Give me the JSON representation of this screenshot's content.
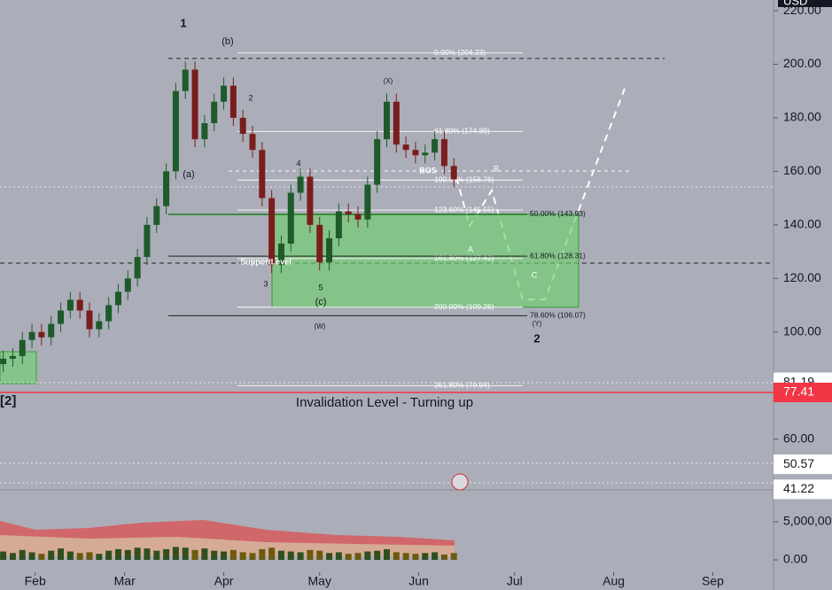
{
  "chart_data": {
    "type": "candlestick",
    "currency": "USD",
    "xlim": [
      20,
      262
    ],
    "xticks": [
      {
        "value": 31,
        "label": "Feb"
      },
      {
        "value": 59,
        "label": "Mar"
      },
      {
        "value": 90,
        "label": "Apr"
      },
      {
        "value": 120,
        "label": "May"
      },
      {
        "value": 151,
        "label": "Jun"
      },
      {
        "value": 181,
        "label": "Jul"
      },
      {
        "value": 212,
        "label": "Aug"
      },
      {
        "value": 243,
        "label": "Sep"
      }
    ],
    "ylim": [
      41,
      224
    ],
    "yticks": [
      {
        "value": 60,
        "label": "60.00"
      },
      {
        "value": 100,
        "label": "100.00"
      },
      {
        "value": 120,
        "label": "120.00"
      },
      {
        "value": 140,
        "label": "140.00"
      },
      {
        "value": 160,
        "label": "160.00"
      },
      {
        "value": 180,
        "label": "180.00"
      },
      {
        "value": 200,
        "label": "200.00"
      },
      {
        "value": 220,
        "label": "220.00"
      }
    ],
    "up_color": "#1e5a2a",
    "down_color": "#7a1d1d",
    "x": [
      21,
      24,
      27,
      30,
      33,
      36,
      39,
      42,
      45,
      48,
      51,
      54,
      57,
      60,
      63,
      66,
      69,
      72,
      75,
      78,
      81,
      84,
      87,
      90,
      93,
      96,
      99,
      102,
      105,
      108,
      111,
      114,
      117,
      120,
      123,
      126,
      129,
      132,
      135,
      138,
      141,
      144,
      147,
      150,
      153,
      156,
      159,
      162
    ],
    "open": [
      88,
      90,
      91,
      97,
      100,
      98,
      103,
      108,
      112,
      108,
      101,
      104,
      110,
      115,
      120,
      128,
      140,
      147,
      160,
      190,
      198,
      172,
      178,
      186,
      192,
      180,
      174,
      168,
      150,
      125,
      133,
      152,
      158,
      140,
      126,
      135,
      145,
      144,
      142,
      155,
      172,
      186,
      170,
      168,
      166,
      167,
      172,
      162
    ],
    "high": [
      93,
      94,
      100,
      103,
      103,
      106,
      111,
      115,
      115,
      111,
      107,
      113,
      118,
      123,
      131,
      143,
      150,
      163,
      193,
      201,
      201,
      181,
      189,
      195,
      195,
      183,
      177,
      171,
      153,
      136,
      155,
      161,
      161,
      143,
      138,
      148,
      148,
      147,
      158,
      175,
      189,
      189,
      173,
      171,
      170,
      175,
      175,
      165
    ],
    "low": [
      85,
      87,
      88,
      94,
      95,
      95,
      100,
      105,
      105,
      98,
      98,
      101,
      107,
      112,
      117,
      125,
      137,
      144,
      157,
      187,
      169,
      169,
      175,
      183,
      177,
      171,
      165,
      147,
      122,
      122,
      130,
      149,
      137,
      123,
      123,
      132,
      141,
      139,
      139,
      152,
      169,
      167,
      165,
      163,
      163,
      164,
      159,
      154
    ],
    "close": [
      90,
      91,
      97,
      100,
      98,
      103,
      108,
      112,
      108,
      101,
      104,
      110,
      115,
      120,
      128,
      140,
      147,
      160,
      190,
      198,
      172,
      178,
      186,
      192,
      180,
      174,
      168,
      150,
      125,
      133,
      152,
      158,
      140,
      126,
      135,
      145,
      144,
      142,
      155,
      172,
      186,
      170,
      168,
      166,
      167,
      172,
      162,
      157
    ],
    "volume": [
      1100000,
      900000,
      1300000,
      1000000,
      800000,
      1200000,
      1500000,
      1100000,
      900000,
      1000000,
      800000,
      1200000,
      1400000,
      1300000,
      1600000,
      1500000,
      1200000,
      1400000,
      1700000,
      1600000,
      1300000,
      1500000,
      1200000,
      1100000,
      1300000,
      1000000,
      900000,
      1400000,
      1600000,
      1200000,
      1100000,
      1000000,
      1300000,
      1200000,
      900000,
      1000000,
      800000,
      900000,
      1100000,
      1200000,
      1400000,
      1000000,
      900000,
      800000,
      900000,
      1000000,
      700000,
      900000
    ],
    "volume_ylim": [
      0,
      10000000
    ],
    "volume_yticks": [
      {
        "value": 0,
        "label": "0.00"
      },
      {
        "value": 5000000,
        "label": "5,000,00"
      }
    ],
    "fib_left": [
      {
        "label": "0.00% (204.23)",
        "value": 204.23
      },
      {
        "label": "61.80% (174.89)",
        "value": 174.89
      },
      {
        "label": "100.00% (156.76)",
        "value": 156.76
      },
      {
        "label": "123.60% (145.55)",
        "value": 145.55
      },
      {
        "label": "161.80% (127.42)",
        "value": 127.42
      },
      {
        "label": "200.00% (109.26)",
        "value": 109.26
      },
      {
        "label": "261.80% (79.94)",
        "value": 79.94
      }
    ],
    "fib_right": [
      {
        "label": "50.00% (143.93)",
        "value": 143.93
      },
      {
        "label": "61.80% (128.31)",
        "value": 128.31
      },
      {
        "label": "78.60% (106.07)",
        "value": 106.07
      }
    ],
    "price_markers": [
      {
        "value": 81.19,
        "color": "#ffffff"
      },
      {
        "value": 77.41,
        "color": "#f23645"
      },
      {
        "value": 50.57,
        "color": "#ffffff"
      },
      {
        "value": 41.22,
        "color": "#ffffff"
      }
    ],
    "invalidation_label": "Invalidation Level - Turning up",
    "annotations": [
      "1",
      "(b)",
      "2",
      "(a)",
      "4",
      "3",
      "5",
      "(c)",
      "(W)",
      "(X)",
      "A",
      "B",
      "C",
      "(Y)",
      "2",
      "BOS",
      "SupportLevel",
      "[2]"
    ]
  }
}
